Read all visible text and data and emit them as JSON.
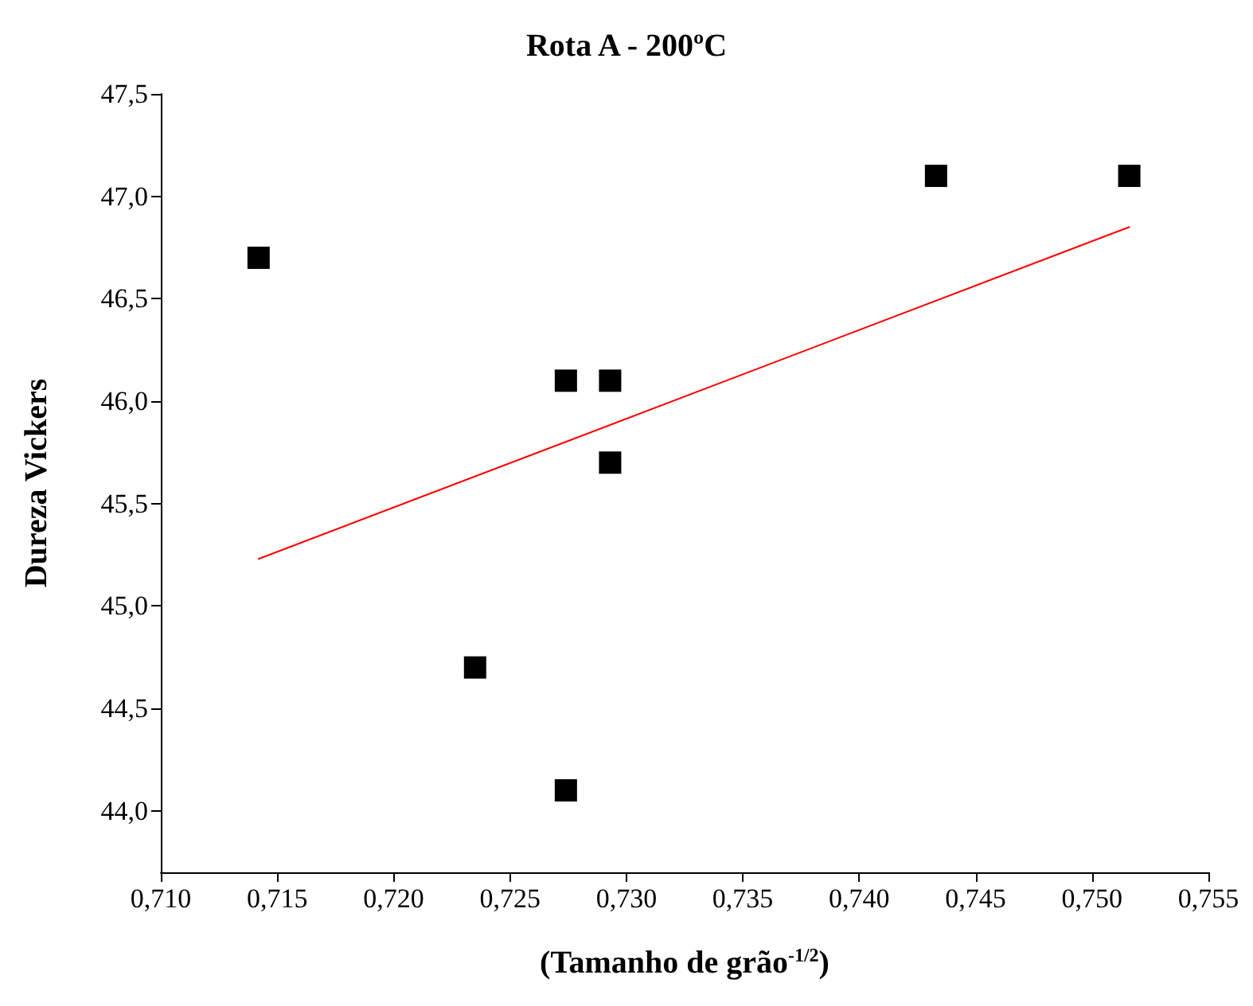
{
  "chart_data": {
    "type": "scatter",
    "title": "Rota A - 200ºC",
    "xlabel": "(Tamanho de grão$^{-1/2}$)",
    "ylabel": "Dureza Vickers",
    "x": [
      0.7142,
      0.7235,
      0.7274,
      0.7274,
      0.7293,
      0.7293,
      0.7433,
      0.7516
    ],
    "series": [
      {
        "color": "#000000",
        "values": [
          46.7,
          44.7,
          46.1,
          44.1,
          46.1,
          45.7,
          47.1,
          47.1
        ]
      },
      {
        "type": "line",
        "color": "#ff0000",
        "x": [
          0.7142,
          0.7516
        ],
        "values": [
          45.23,
          46.85
        ],
        "marker": "none",
        "line_style": "solid"
      }
    ],
    "marker": "square",
    "grid": false,
    "xlim": [
      0.71,
      0.755
    ],
    "xticks": [
      {
        "value": 0.71,
        "label": "0,710"
      },
      {
        "value": 0.715,
        "label": "0,715"
      },
      {
        "value": 0.72,
        "label": "0,720"
      },
      {
        "value": 0.725,
        "label": "0,725"
      },
      {
        "value": 0.73,
        "label": "0,730"
      },
      {
        "value": 0.735,
        "label": "0,735"
      },
      {
        "value": 0.74,
        "label": "0,740"
      },
      {
        "value": 0.745,
        "label": "0,745"
      },
      {
        "value": 0.75,
        "label": "0,750"
      },
      {
        "value": 0.755,
        "label": "0,755"
      }
    ],
    "ylim": [
      43.7,
      47.5
    ],
    "yticks": [
      {
        "value": 44,
        "label": "44,0"
      },
      {
        "value": 44.5,
        "label": "44,5"
      },
      {
        "value": 45,
        "label": "45,0"
      },
      {
        "value": 45.5,
        "label": "45,5"
      },
      {
        "value": 46,
        "label": "46,0"
      },
      {
        "value": 46.5,
        "label": "46,5"
      },
      {
        "value": 47,
        "label": "47,0"
      },
      {
        "value": 47.5,
        "label": "47,5"
      }
    ]
  }
}
